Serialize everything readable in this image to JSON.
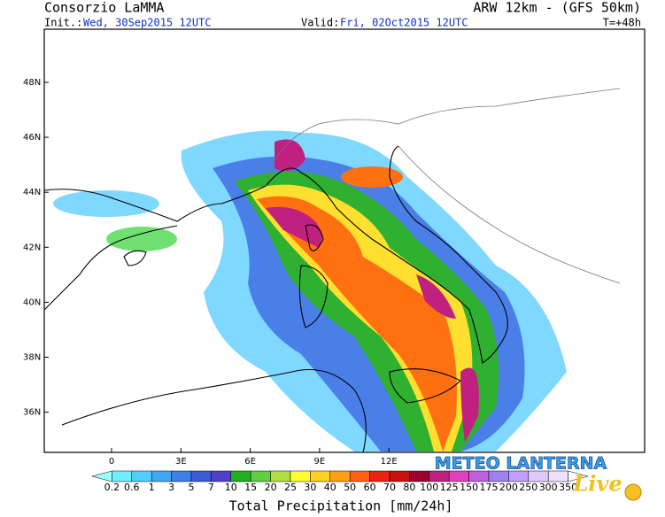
{
  "header": {
    "title": "Consorzio LaMMA",
    "model": "ARW 12km - (GFS 50km)",
    "init_label": "Init.:",
    "init_value": "Wed, 30Sep2015 12UTC",
    "valid_label": "Valid:",
    "valid_value": "Fri, 02Oct2015 12UTC",
    "lead": "T=+48h"
  },
  "map": {
    "lat_labels": [
      "48N",
      "46N",
      "44N",
      "42N",
      "40N",
      "38N",
      "36N"
    ],
    "lon_labels": [
      "0",
      "3E",
      "6E",
      "9E",
      "12E"
    ]
  },
  "colorbar": {
    "labels": [
      "0.2",
      "0.6",
      "1",
      "3",
      "5",
      "7",
      "10",
      "15",
      "20",
      "25",
      "30",
      "40",
      "50",
      "60",
      "70",
      "80",
      "100",
      "125",
      "150",
      "175",
      "200",
      "250",
      "300",
      "350"
    ],
    "colors": [
      "#a0ffff",
      "#70f0ff",
      "#50d0ff",
      "#40a8f0",
      "#3c80e8",
      "#3c5ad8",
      "#5040c8",
      "#20b020",
      "#60d040",
      "#b0e040",
      "#ffff30",
      "#ffd020",
      "#ffa010",
      "#ff6010",
      "#f02010",
      "#c81010",
      "#a00030",
      "#c02080",
      "#e040c0",
      "#c060e0",
      "#a080f0",
      "#c0a0ff",
      "#e0c8ff",
      "#f0e0ff",
      "#ffffff"
    ],
    "title": "Total Precipitation [mm/24h]"
  },
  "logo": {
    "line1": "METEO LANTERNA",
    "line2": "Live"
  }
}
